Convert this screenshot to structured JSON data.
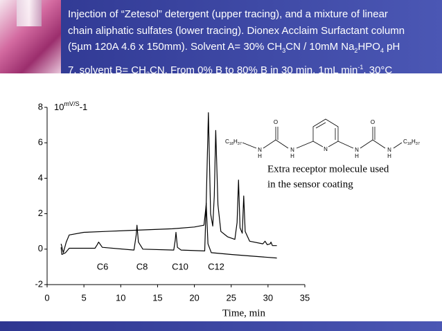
{
  "banner": {
    "lines": [
      [
        "Injection of “Zetesol” detergent (upper tracing), and a mixture of  linear"
      ],
      [
        "chain aliphatic sulfates (lower tracing). Dionex Acclaim Surfactant column"
      ],
      [
        "(5µm 120A 4.6 x 150mm). Solvent A= 30% CH",
        {
          "t": "3",
          "s": "sub"
        },
        "CN / 10mM Na",
        {
          "t": "2",
          "s": "sub"
        },
        "HPO",
        {
          "t": "4",
          "s": "sub"
        },
        " pH"
      ],
      [
        "7, solvent B= CH",
        {
          "t": "3",
          "s": "sub"
        },
        "CN. From 0% B to 80% B in 30 min. 1mL min",
        {
          "t": "-1",
          "s": "sup"
        },
        ", 30°C"
      ]
    ]
  },
  "molecule": {
    "atoms": [
      "O",
      "O",
      "N",
      "H",
      "N",
      "H",
      "N",
      "N",
      "H",
      "N",
      "H"
    ],
    "chains": [
      [
        "C",
        {
          "t": "18",
          "s": "sub"
        },
        "H",
        {
          "t": "37",
          "s": "sub"
        }
      ],
      [
        "C",
        {
          "t": "18",
          "s": "sub"
        },
        "H",
        {
          "t": "37",
          "s": "sub"
        }
      ]
    ],
    "caption_lines": [
      "Extra receptor molecule used",
      "in the sensor coating"
    ]
  },
  "chart_data": {
    "type": "line",
    "y_label": [
      "10",
      {
        "t": "mV/S",
        "s": "sup"
      },
      "-1"
    ],
    "x_label": "Time, min",
    "xlim": [
      0,
      35
    ],
    "xticks": [
      0,
      5,
      10,
      15,
      20,
      25,
      30,
      35
    ],
    "ylim": [
      -2,
      8
    ],
    "yticks": [
      -2,
      0,
      2,
      4,
      6,
      8
    ],
    "annotations": [
      "C6",
      "C8",
      "C10",
      "C12"
    ],
    "series": [
      {
        "color": "#000000",
        "x": [
          1.9,
          2.2,
          2.6,
          3.0,
          5,
          8,
          11,
          14,
          17,
          20,
          21.3,
          21.6,
          21.9,
          22.2,
          22.5,
          22.7,
          22.9,
          23.2,
          23.6,
          24.5,
          25.5,
          25.8,
          26.0,
          26.2,
          26.5,
          26.7,
          26.9,
          27.5,
          29.3,
          29.6,
          29.9,
          30.3,
          30.4,
          30.6,
          31.2
        ],
        "values": [
          0.3,
          -0.2,
          0.4,
          0.8,
          0.95,
          1.0,
          1.05,
          1.1,
          1.15,
          1.25,
          1.35,
          2.5,
          7.7,
          2.0,
          1.3,
          3,
          6.7,
          2.5,
          1.0,
          0.7,
          0.55,
          1.5,
          3.9,
          1.2,
          0.9,
          3.0,
          1.0,
          0.45,
          0.3,
          0.45,
          0.25,
          0.3,
          0.4,
          0.2,
          0.2
        ]
      },
      {
        "color": "#000000",
        "x": [
          1.9,
          2.0,
          2.5,
          3,
          6.5,
          6.8,
          7.0,
          7.5,
          11.8,
          12.1,
          12.2,
          12.4,
          13,
          17.2,
          17.4,
          17.5,
          17.7,
          18.2,
          21.4,
          21.6,
          21.85,
          22.3,
          25,
          28,
          31.2
        ],
        "values": [
          0.1,
          -0.3,
          -0.2,
          0.05,
          0.05,
          0.25,
          0.4,
          0.1,
          -0.05,
          0.8,
          1.35,
          0.4,
          0.0,
          -0.05,
          0.5,
          0.95,
          0.1,
          -0.05,
          -0.1,
          2.6,
          0.3,
          -0.2,
          -0.3,
          -0.4,
          -0.5
        ]
      }
    ]
  }
}
